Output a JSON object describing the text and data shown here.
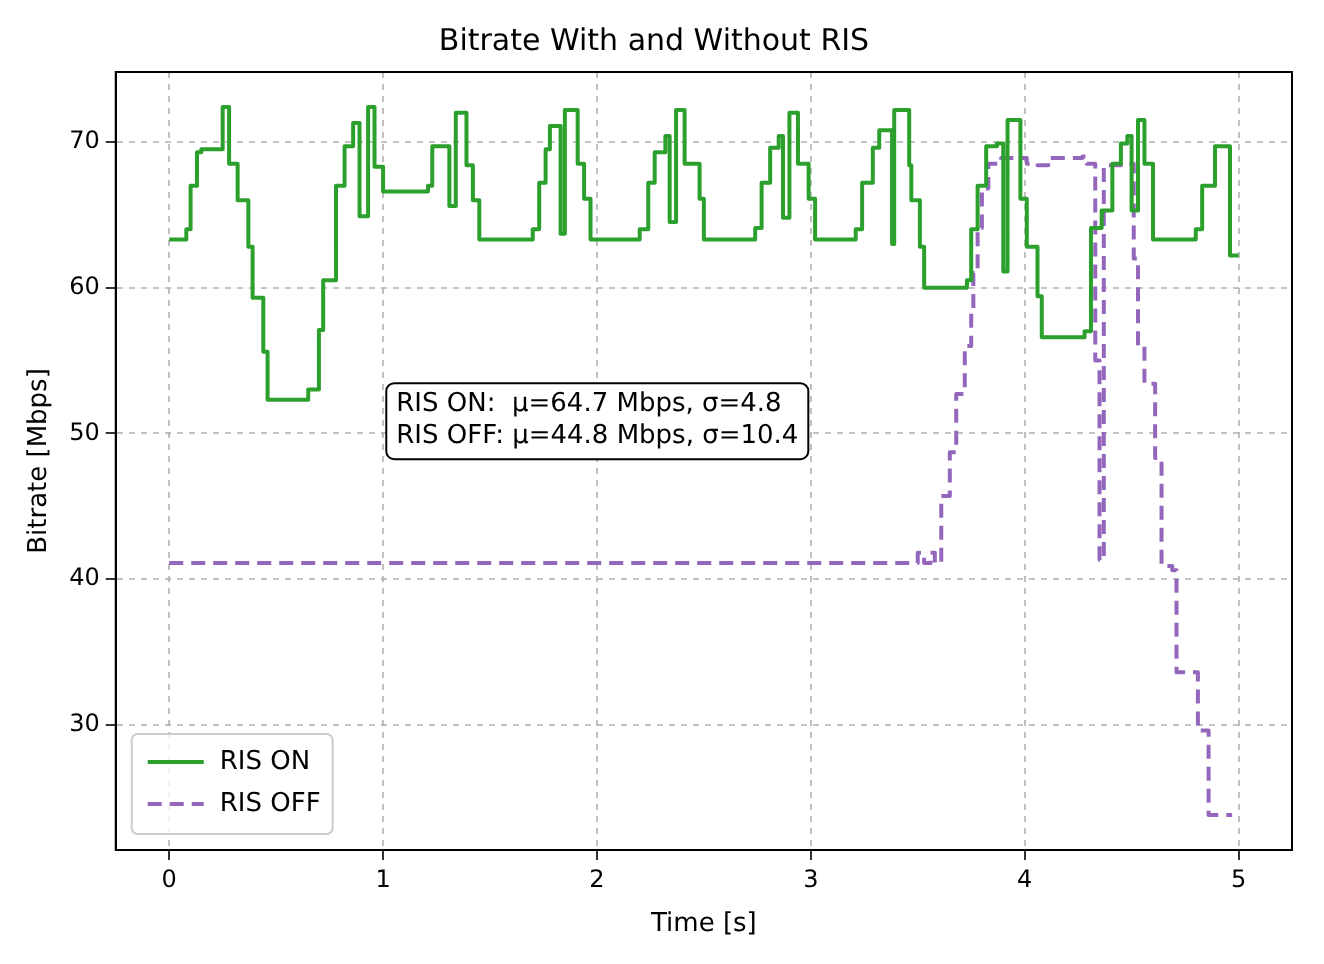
{
  "chart_data": {
    "type": "step",
    "title": "Bitrate With and Without RIS",
    "xlabel": "Time [s]",
    "ylabel": "Bitrate [Mbps]",
    "xlim": [
      -0.25,
      5.25
    ],
    "ylim": [
      21.4,
      74.8
    ],
    "xticks": [
      0,
      1,
      2,
      3,
      4,
      5
    ],
    "yticks": [
      30,
      40,
      50,
      60,
      70
    ],
    "grid": true,
    "legend": "bottom left",
    "annotations": [
      "RIS ON:  μ=64.7 Mbps, σ=4.8",
      "RIS OFF: μ=44.8 Mbps, σ=10.4"
    ],
    "series": [
      {
        "name": "RIS ON",
        "color": "#2ca02c",
        "line_style": "solid",
        "x": [
          0,
          0.08,
          0.1,
          0.13,
          0.15,
          0.25,
          0.28,
          0.32,
          0.37,
          0.39,
          0.44,
          0.46,
          0.65,
          0.7,
          0.72,
          0.78,
          0.82,
          0.86,
          0.89,
          0.93,
          0.96,
          1.0,
          1.21,
          1.23,
          1.31,
          1.34,
          1.39,
          1.42,
          1.45,
          1.7,
          1.73,
          1.76,
          1.78,
          1.83,
          1.85,
          1.91,
          1.94,
          1.97,
          2.2,
          2.24,
          2.27,
          2.32,
          2.34,
          2.37,
          2.41,
          2.48,
          2.5,
          2.74,
          2.77,
          2.81,
          2.85,
          2.87,
          2.9,
          2.94,
          2.99,
          3.02,
          3.21,
          3.24,
          3.29,
          3.32,
          3.38,
          3.39,
          3.46,
          3.47,
          3.51,
          3.53,
          3.73,
          3.75,
          3.78,
          3.82,
          3.87,
          3.9,
          3.92,
          3.98,
          4.01,
          4.06,
          4.08,
          4.28,
          4.31,
          4.36,
          4.41,
          4.45,
          4.48,
          4.5,
          4.53,
          4.56,
          4.6,
          4.8,
          4.83,
          4.89,
          4.96,
          5.0
        ],
        "values": [
          63.3,
          64,
          67,
          69.3,
          69.5,
          72.4,
          68.5,
          66,
          62.8,
          59.3,
          55.6,
          52.3,
          53,
          57.1,
          60.5,
          67,
          69.7,
          71.3,
          64.9,
          72.4,
          68.3,
          66.6,
          67,
          69.7,
          65.6,
          72,
          68.4,
          66,
          63.3,
          64,
          67.2,
          69.5,
          71.1,
          63.7,
          72.2,
          68.5,
          66.1,
          63.3,
          64,
          67.2,
          69.3,
          70.4,
          64.5,
          72.2,
          68.5,
          66.1,
          63.3,
          64.1,
          67.2,
          69.6,
          70.4,
          64.8,
          72,
          68.5,
          66.1,
          63.3,
          64,
          67.2,
          69.6,
          70.8,
          63,
          72.2,
          68.4,
          66,
          62.8,
          60,
          60.5,
          64,
          67,
          69.7,
          69.9,
          61.1,
          71.5,
          66.1,
          62.8,
          59.4,
          56.6,
          57,
          64.1,
          65.3,
          68.5,
          69.9,
          70.4,
          65.3,
          71.5,
          68.5,
          63.3,
          64,
          67,
          69.7,
          62.2,
          62.2
        ]
      },
      {
        "name": "RIS OFF",
        "color": "#9467bd",
        "line_style": "dashed",
        "x": [
          0,
          3.5,
          3.53,
          3.56,
          3.58,
          3.61,
          3.65,
          3.68,
          3.72,
          3.75,
          3.76,
          3.78,
          3.8,
          3.83,
          3.89,
          4.01,
          4.06,
          4.11,
          4.27,
          4.29,
          4.33,
          4.35,
          4.37,
          4.45,
          4.51,
          4.53,
          4.56,
          4.61,
          4.64,
          4.69,
          4.71,
          4.79,
          4.81,
          4.86,
          4.97
        ],
        "values": [
          41.1,
          41.8,
          41.1,
          41.8,
          41.1,
          45.7,
          48.7,
          52.7,
          56,
          58.3,
          61,
          64.1,
          66.8,
          68.5,
          68.9,
          68.5,
          68.4,
          68.9,
          69,
          68.5,
          55,
          41.3,
          68.4,
          68.5,
          62,
          56,
          53.4,
          48.3,
          40.9,
          40.6,
          33.6,
          33.6,
          29.6,
          23.8,
          23.8
        ]
      }
    ]
  }
}
